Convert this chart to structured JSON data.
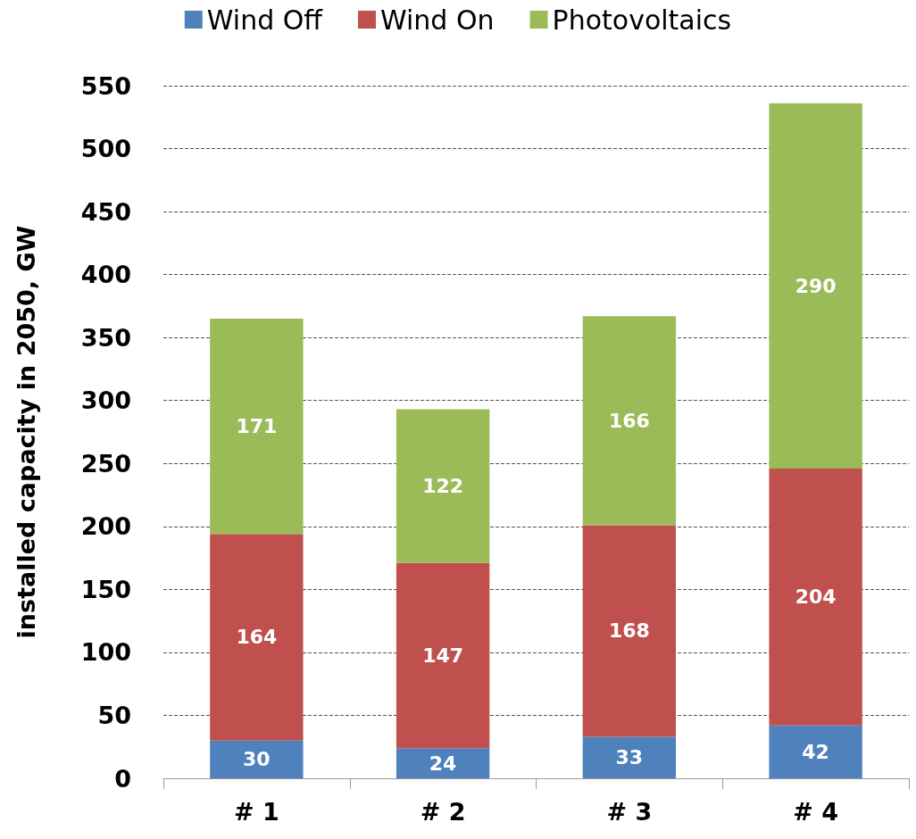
{
  "chart_data": {
    "type": "bar",
    "stacked": true,
    "ylabel": "installed capacity in 2050, GW",
    "categories": [
      "# 1",
      "# 2",
      "# 3",
      "# 4"
    ],
    "series": [
      {
        "name": "Wind Off",
        "color": "#4f81bd",
        "values": [
          30,
          24,
          33,
          42
        ]
      },
      {
        "name": "Wind On",
        "color": "#c0504d",
        "values": [
          164,
          147,
          168,
          204
        ]
      },
      {
        "name": "Photovoltaics",
        "color": "#9bbb59",
        "values": [
          171,
          122,
          166,
          290
        ]
      }
    ],
    "ylim": [
      0,
      550
    ],
    "yticks": [
      0,
      50,
      100,
      150,
      200,
      250,
      300,
      350,
      400,
      450,
      500,
      550
    ],
    "grid": "y",
    "legend": "top",
    "data_labels": true
  }
}
